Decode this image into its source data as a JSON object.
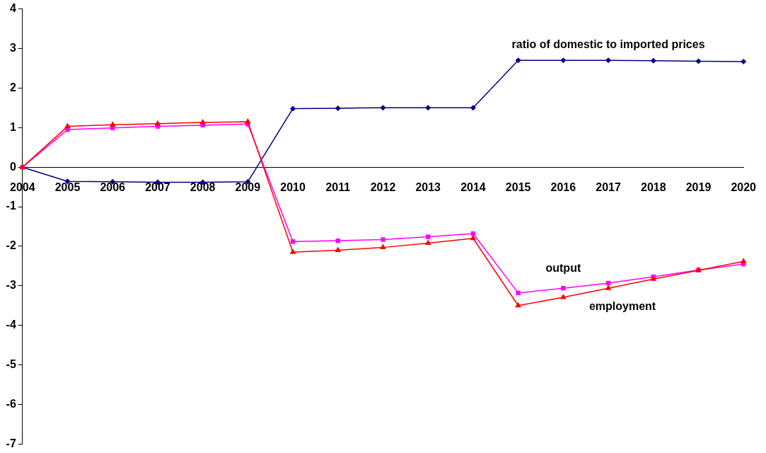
{
  "chart_data": {
    "type": "line",
    "categories": [
      "2004",
      "2005",
      "2006",
      "2007",
      "2008",
      "2009",
      "2010",
      "2011",
      "2012",
      "2013",
      "2014",
      "2015",
      "2016",
      "2017",
      "2018",
      "2019",
      "2020"
    ],
    "series": [
      {
        "name": "ratio of domestic to imported prices",
        "color": "#000080",
        "marker": "diamond",
        "values": [
          0,
          -0.36,
          -0.37,
          -0.38,
          -0.38,
          -0.37,
          1.48,
          1.49,
          1.5,
          1.5,
          1.5,
          2.7,
          2.7,
          2.7,
          2.69,
          2.68,
          2.67
        ]
      },
      {
        "name": "output",
        "color": "#ff00ff",
        "marker": "square",
        "values": [
          0,
          0.95,
          0.99,
          1.03,
          1.06,
          1.09,
          -1.88,
          -1.86,
          -1.83,
          -1.76,
          -1.68,
          -3.18,
          -3.06,
          -2.93,
          -2.77,
          -2.6,
          -2.45
        ]
      },
      {
        "name": "employment",
        "color": "#ff0000",
        "marker": "triangle",
        "values": [
          0,
          1.03,
          1.07,
          1.1,
          1.13,
          1.15,
          -2.15,
          -2.1,
          -2.03,
          -1.92,
          -1.8,
          -3.5,
          -3.29,
          -3.06,
          -2.83,
          -2.61,
          -2.38
        ]
      }
    ],
    "ylim": [
      -7,
      4
    ],
    "yticks": [
      -7,
      -6,
      -5,
      -4,
      -3,
      -2,
      -1,
      0,
      1,
      2,
      3,
      4
    ],
    "grid": false,
    "legend": false,
    "line_style": "solid"
  }
}
